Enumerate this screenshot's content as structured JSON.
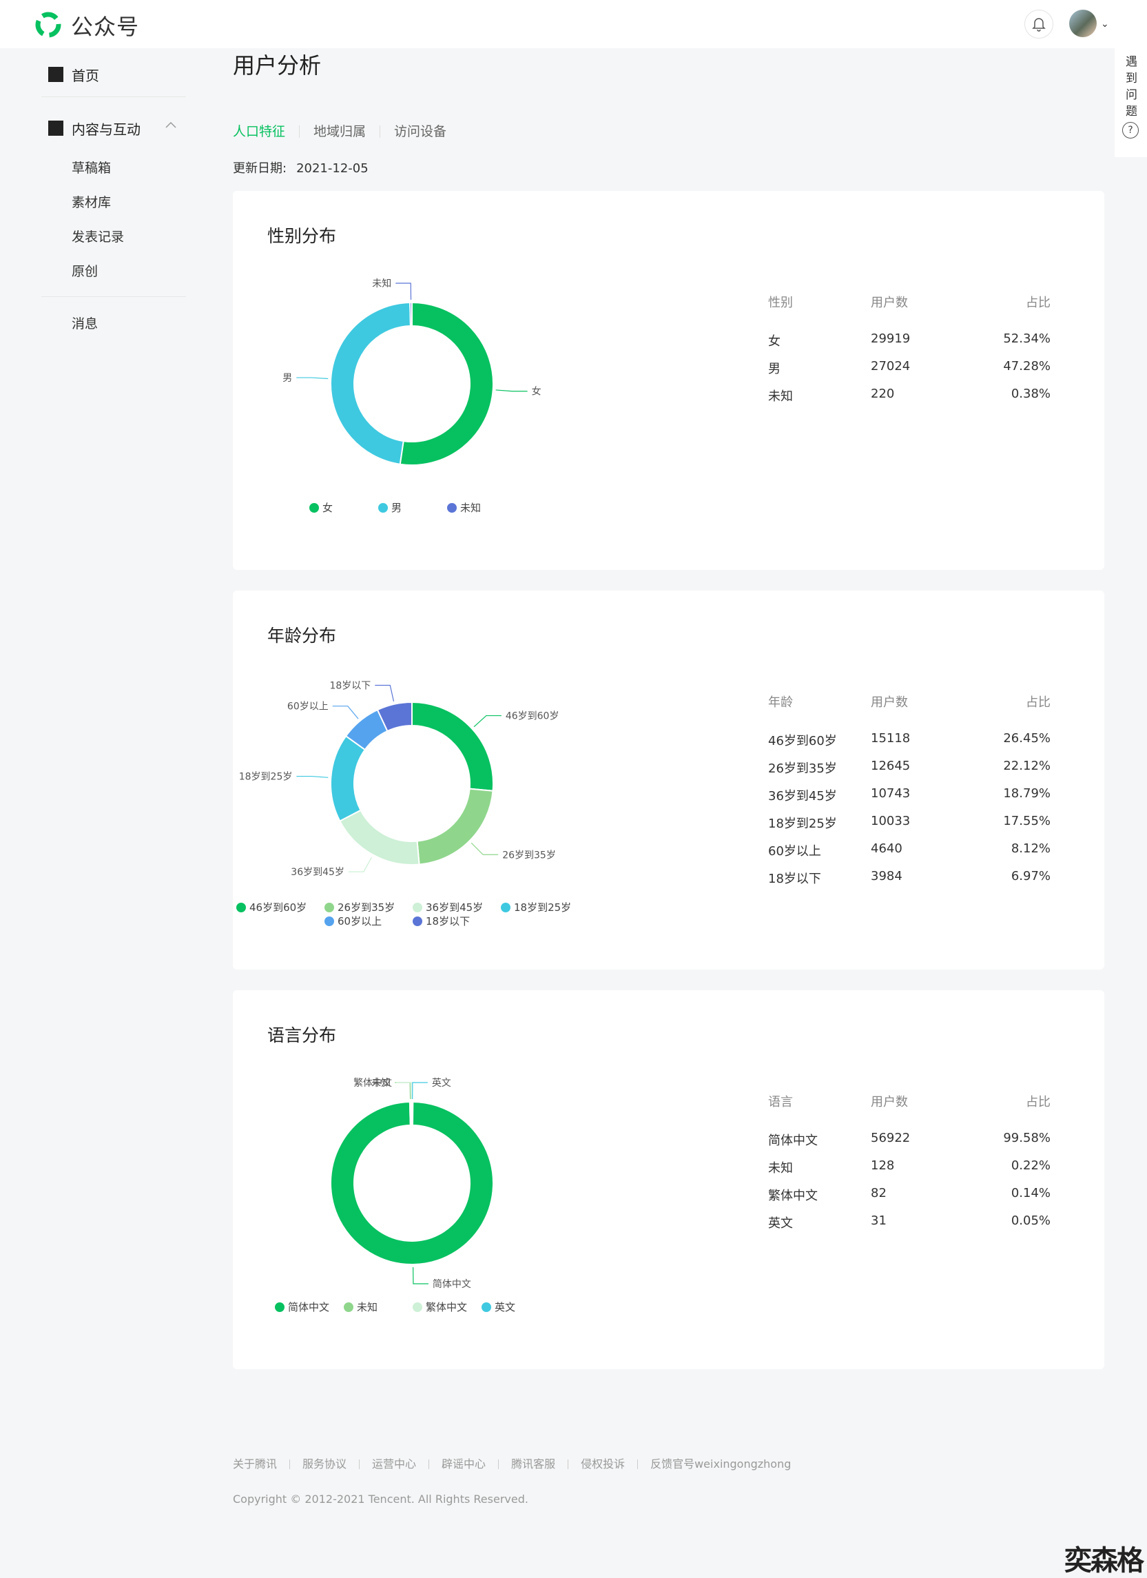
{
  "header": {
    "brand": "公众号",
    "accent": "#07c160"
  },
  "sidebar": {
    "home": "首页",
    "content_group": "内容与互动",
    "sub_items": [
      "草稿箱",
      "素材库",
      "发表记录",
      "原创"
    ],
    "messages": "消息"
  },
  "help": {
    "label": "遇到问题",
    "icon": "?"
  },
  "main": {
    "title": "用户分析",
    "tabs": [
      "人口特征",
      "地域归属",
      "访问设备"
    ],
    "active_tab": "人口特征",
    "update_label": "更新日期:",
    "update_date": "2021-12-05"
  },
  "gender": {
    "title": "性别分布",
    "headers": [
      "性别",
      "用户数",
      "占比"
    ],
    "rows": [
      [
        "女",
        "29919",
        "52.34%"
      ],
      [
        "男",
        "27024",
        "47.28%"
      ],
      [
        "未知",
        "220",
        "0.38%"
      ]
    ]
  },
  "age": {
    "title": "年龄分布",
    "headers": [
      "年龄",
      "用户数",
      "占比"
    ],
    "rows": [
      [
        "46岁到60岁",
        "15118",
        "26.45%"
      ],
      [
        "26岁到35岁",
        "12645",
        "22.12%"
      ],
      [
        "36岁到45岁",
        "10743",
        "18.79%"
      ],
      [
        "18岁到25岁",
        "10033",
        "17.55%"
      ],
      [
        "60岁以上",
        "4640",
        "8.12%"
      ],
      [
        "18岁以下",
        "3984",
        "6.97%"
      ]
    ]
  },
  "language": {
    "title": "语言分布",
    "headers": [
      "语言",
      "用户数",
      "占比"
    ],
    "rows": [
      [
        "简体中文",
        "56922",
        "99.58%"
      ],
      [
        "未知",
        "128",
        "0.22%"
      ],
      [
        "繁体中文",
        "82",
        "0.14%"
      ],
      [
        "英文",
        "31",
        "0.05%"
      ]
    ]
  },
  "chart_data": [
    {
      "type": "pie",
      "labels": [
        "女",
        "男",
        "未知"
      ],
      "values": [
        29919,
        27024,
        220
      ],
      "colors": [
        "#07c160",
        "#3ec9e0",
        "#5b75d6"
      ],
      "legend": [
        "女",
        "男",
        "未知"
      ]
    },
    {
      "type": "pie",
      "labels": [
        "46岁到60岁",
        "26岁到35岁",
        "36岁到45岁",
        "18岁到25岁",
        "60岁以上",
        "18岁以下"
      ],
      "values": [
        15118,
        12645,
        10743,
        10033,
        4640,
        3984
      ],
      "colors": [
        "#07c160",
        "#8fd68c",
        "#cdf0d6",
        "#3ec9e0",
        "#55a3ee",
        "#5b75d6"
      ],
      "legend": [
        "46岁到60岁",
        "26岁到35岁",
        "36岁到45岁",
        "18岁到25岁",
        "60岁以上",
        "18岁以下"
      ]
    },
    {
      "type": "pie",
      "labels": [
        "简体中文",
        "未知",
        "繁体中文",
        "英文"
      ],
      "values": [
        56922,
        128,
        82,
        31
      ],
      "colors": [
        "#07c160",
        "#8fd68c",
        "#cdf0d6",
        "#3ec9e0"
      ],
      "legend": [
        "简体中文",
        "未知",
        "繁体中文",
        "英文"
      ]
    }
  ],
  "footer": {
    "links": [
      "关于腾讯",
      "服务协议",
      "运营中心",
      "辟谣中心",
      "腾讯客服",
      "侵权投诉",
      "反馈官号weixingongzhong"
    ],
    "copyright": "Copyright © 2012-2021 Tencent. All Rights Reserved."
  },
  "watermark": "奕森格"
}
